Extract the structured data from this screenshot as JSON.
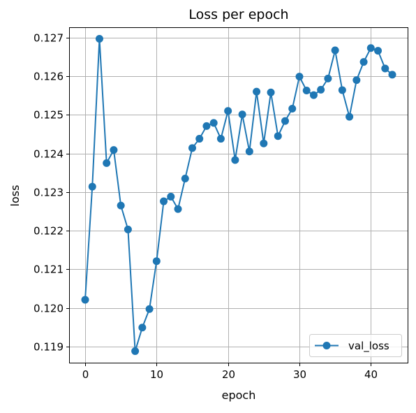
{
  "chart_data": {
    "type": "line",
    "title": "Loss per epoch",
    "xlabel": "epoch",
    "ylabel": "loss",
    "xlim": [
      -2.15,
      45.15
    ],
    "ylim": [
      0.11858,
      0.12725
    ],
    "xticks": [
      0,
      10,
      20,
      30,
      40
    ],
    "yticks": [
      0.119,
      0.12,
      0.121,
      0.122,
      0.123,
      0.124,
      0.125,
      0.126,
      0.127
    ],
    "grid": true,
    "legend_position": "lower-right",
    "series": [
      {
        "name": "val_loss",
        "color": "#1f77b4",
        "marker": "circle",
        "x": [
          0,
          1,
          2,
          3,
          4,
          5,
          6,
          7,
          8,
          9,
          10,
          11,
          12,
          13,
          14,
          15,
          16,
          17,
          18,
          19,
          20,
          21,
          22,
          23,
          24,
          25,
          26,
          27,
          28,
          29,
          30,
          31,
          32,
          33,
          34,
          35,
          36,
          37,
          38,
          39,
          40,
          41,
          42,
          43
        ],
        "values": [
          0.12021,
          0.12314,
          0.12697,
          0.12375,
          0.12409,
          0.12265,
          0.12203,
          0.11888,
          0.11949,
          0.11997,
          0.12121,
          0.12276,
          0.12288,
          0.12256,
          0.12335,
          0.12414,
          0.12438,
          0.12471,
          0.12479,
          0.12438,
          0.1251,
          0.12383,
          0.12501,
          0.12405,
          0.1256,
          0.12426,
          0.12558,
          0.12445,
          0.12484,
          0.12516,
          0.12599,
          0.12563,
          0.12551,
          0.12565,
          0.12594,
          0.12667,
          0.12564,
          0.12495,
          0.1259,
          0.12637,
          0.12673,
          0.12666,
          0.1262,
          0.12604
        ]
      }
    ]
  }
}
